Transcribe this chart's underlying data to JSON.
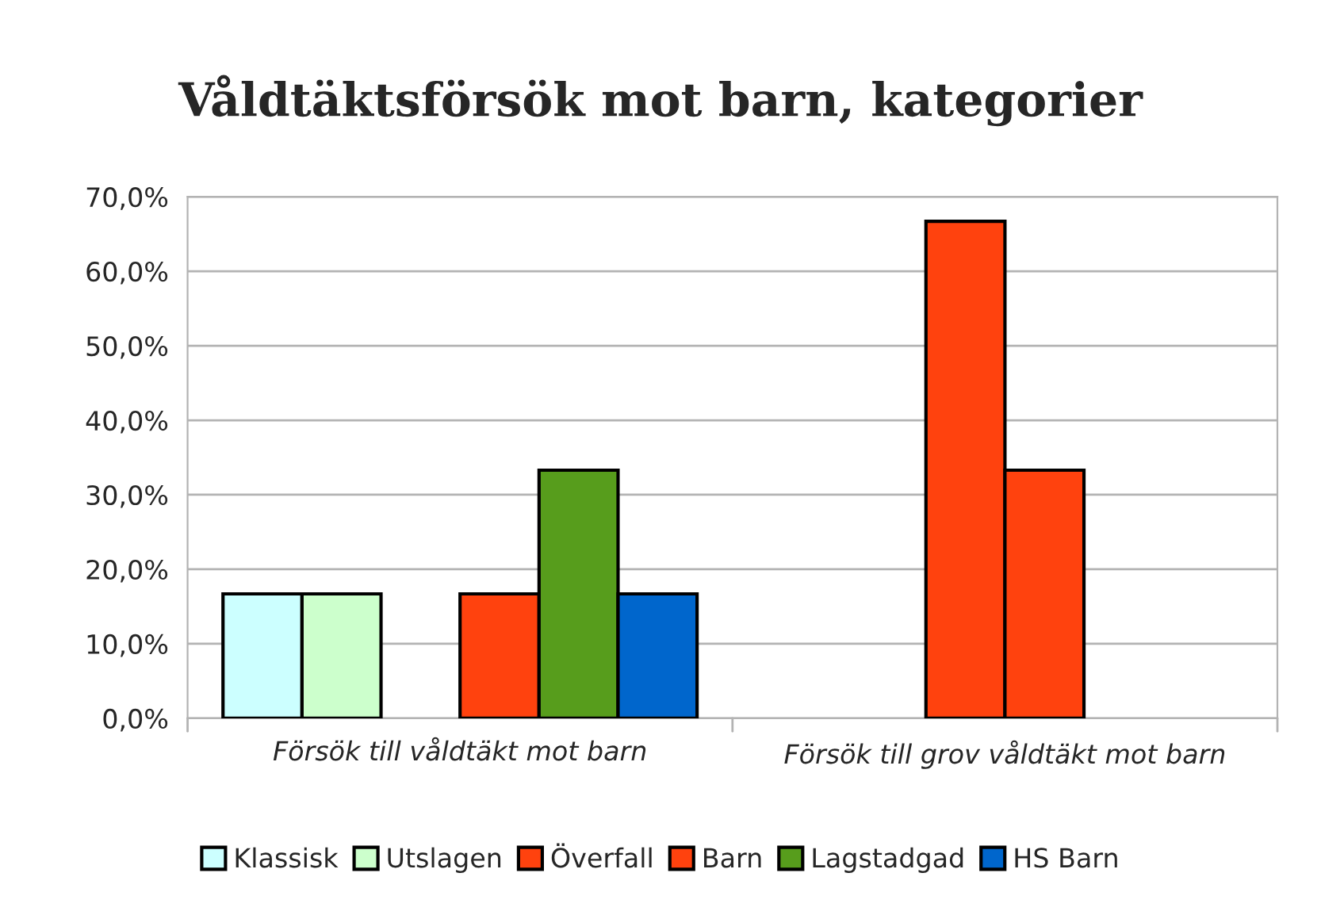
{
  "chart_data": {
    "type": "bar",
    "title": "Våldtäktsförsök mot barn, kategorier",
    "categories": [
      "Försök till våldtäkt mot barn",
      "Försök till grov våldtäkt mot barn"
    ],
    "series": [
      {
        "name": "Klassisk",
        "color": "#ccffff",
        "values": [
          16.7,
          null
        ]
      },
      {
        "name": "Utslagen",
        "color": "#ccffcc",
        "values": [
          16.7,
          null
        ]
      },
      {
        "name": "Överfall",
        "color": "#ff420e",
        "values": [
          null,
          66.7
        ]
      },
      {
        "name": "Barn",
        "color": "#ff420e",
        "values": [
          16.7,
          33.3
        ]
      },
      {
        "name": "Lagstadgad",
        "color": "#579d1c",
        "values": [
          33.3,
          null
        ]
      },
      {
        "name": "HS Barn",
        "color": "#0066cc",
        "values": [
          16.7,
          null
        ]
      }
    ],
    "ylim": [
      0,
      70
    ],
    "yticks": [
      {
        "value": 0,
        "label": "0,0%"
      },
      {
        "value": 10,
        "label": "10,0%"
      },
      {
        "value": 20,
        "label": "20,0%"
      },
      {
        "value": 30,
        "label": "30,0%"
      },
      {
        "value": 40,
        "label": "40,0%"
      },
      {
        "value": 50,
        "label": "50,0%"
      },
      {
        "value": 60,
        "label": "60,0%"
      },
      {
        "value": 70,
        "label": "70,0%"
      }
    ],
    "grid": "y",
    "legend": "bottom"
  }
}
